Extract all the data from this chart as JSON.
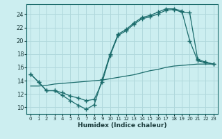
{
  "xlabel": "Humidex (Indice chaleur)",
  "bg_color": "#cceef0",
  "line_color": "#1a6b6b",
  "grid_color": "#b0d8dc",
  "xlim": [
    -0.5,
    23.5
  ],
  "ylim": [
    9.0,
    25.5
  ],
  "xticks": [
    0,
    1,
    2,
    3,
    4,
    5,
    6,
    7,
    8,
    9,
    10,
    11,
    12,
    13,
    14,
    15,
    16,
    17,
    18,
    19,
    20,
    21,
    22,
    23
  ],
  "yticks": [
    10,
    12,
    14,
    16,
    18,
    20,
    22,
    24
  ],
  "line1_x": [
    0,
    1,
    2,
    3,
    4,
    5,
    6,
    7,
    8,
    9,
    10,
    11,
    12,
    13,
    14,
    15,
    16,
    17,
    18,
    19,
    20,
    21,
    22,
    23
  ],
  "line1_y": [
    15.0,
    13.8,
    12.5,
    12.5,
    11.8,
    11.0,
    10.3,
    9.7,
    10.4,
    14.2,
    18.0,
    21.0,
    21.7,
    22.7,
    23.5,
    23.8,
    24.3,
    24.8,
    24.8,
    24.5,
    20.0,
    17.0,
    16.7,
    16.5
  ],
  "line2_x": [
    0,
    1,
    2,
    3,
    4,
    5,
    6,
    7,
    8,
    9,
    10,
    11,
    12,
    13,
    14,
    15,
    16,
    17,
    18,
    19,
    20,
    21,
    22,
    23
  ],
  "line2_y": [
    15.0,
    13.8,
    12.5,
    12.5,
    12.2,
    11.7,
    11.4,
    11.0,
    11.2,
    13.8,
    17.8,
    20.8,
    21.5,
    22.5,
    23.3,
    23.6,
    24.0,
    24.6,
    24.7,
    24.3,
    24.2,
    17.2,
    16.8,
    16.5
  ],
  "line3_x": [
    0,
    1,
    2,
    3,
    4,
    5,
    6,
    7,
    8,
    9,
    10,
    11,
    12,
    13,
    14,
    15,
    16,
    17,
    18,
    19,
    20,
    21,
    22,
    23
  ],
  "line3_y": [
    13.2,
    13.2,
    13.3,
    13.5,
    13.6,
    13.7,
    13.8,
    13.9,
    14.0,
    14.1,
    14.3,
    14.5,
    14.7,
    14.9,
    15.2,
    15.5,
    15.7,
    16.0,
    16.2,
    16.3,
    16.4,
    16.5,
    16.5,
    16.5
  ]
}
